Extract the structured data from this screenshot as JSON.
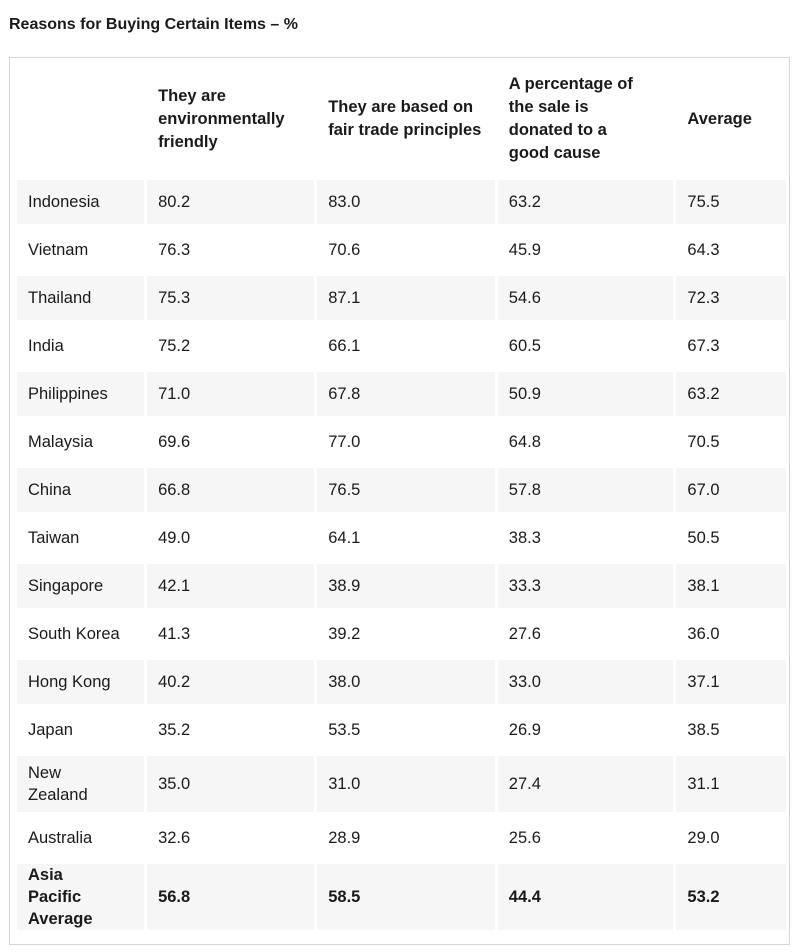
{
  "title": "Reasons for Buying Certain Items – %",
  "table": {
    "headers": [
      "",
      "They are environmentally friendly",
      "They are based on fair trade principles",
      "A percentage of the sale is donated to a good cause",
      "Average"
    ],
    "rows": [
      [
        "Indonesia",
        "80.2",
        "83.0",
        "63.2",
        "75.5"
      ],
      [
        "Vietnam",
        "76.3",
        "70.6",
        "45.9",
        "64.3"
      ],
      [
        "Thailand",
        "75.3",
        "87.1",
        "54.6",
        "72.3"
      ],
      [
        "India",
        "75.2",
        "66.1",
        "60.5",
        "67.3"
      ],
      [
        "Philippines",
        "71.0",
        "67.8",
        "50.9",
        "63.2"
      ],
      [
        "Malaysia",
        "69.6",
        "77.0",
        "64.8",
        "70.5"
      ],
      [
        "China",
        "66.8",
        "76.5",
        "57.8",
        "67.0"
      ],
      [
        "Taiwan",
        "49.0",
        "64.1",
        "38.3",
        "50.5"
      ],
      [
        "Singapore",
        "42.1",
        "38.9",
        "33.3",
        "38.1"
      ],
      [
        "South Korea",
        "41.3",
        "39.2",
        "27.6",
        "36.0"
      ],
      [
        "Hong Kong",
        "40.2",
        "38.0",
        "33.0",
        "37.1"
      ],
      [
        "Japan",
        "35.2",
        "53.5",
        "26.9",
        "38.5"
      ],
      [
        "New Zealand",
        "35.0",
        "31.0",
        "27.4",
        "31.1"
      ],
      [
        "Australia",
        "32.6",
        "28.9",
        "25.6",
        "29.0"
      ],
      [
        "Asia Pacific Average",
        "56.8",
        "58.5",
        "44.4",
        "53.2"
      ]
    ]
  }
}
